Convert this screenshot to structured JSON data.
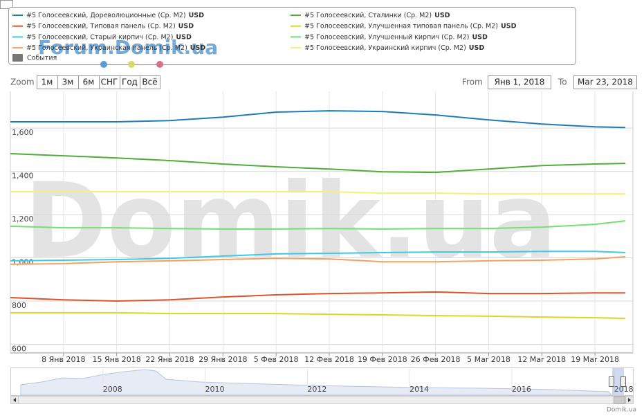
{
  "chart_data": {
    "type": "line",
    "currency": "USD",
    "events_label": "События",
    "x": [
      "2018-01-01",
      "2018-01-08",
      "2018-01-15",
      "2018-01-22",
      "2018-01-29",
      "2018-02-05",
      "2018-02-12",
      "2018-02-19",
      "2018-02-26",
      "2018-03-05",
      "2018-03-12",
      "2018-03-19",
      "2018-03-23"
    ],
    "series": [
      {
        "name": "#5 Голосеевский, Дореволюционные (Ср. M2)",
        "color": "#1f7ab8",
        "values": [
          1629,
          1629,
          1629,
          1635,
          1651,
          1674,
          1680,
          1677,
          1661,
          1638,
          1619,
          1606,
          1603
        ]
      },
      {
        "name": "#5 Голосеевский, Типовая панель (Ср. M2)",
        "color": "#e0522b",
        "values": [
          816,
          806,
          800,
          806,
          819,
          829,
          835,
          838,
          842,
          835,
          835,
          838,
          838
        ]
      },
      {
        "name": "#5 Голосеевский, Старый кирпич (Ср. M2)",
        "color": "#3ec8e8",
        "values": [
          986,
          989,
          992,
          998,
          1008,
          1018,
          1021,
          1024,
          1027,
          1027,
          1030,
          1030,
          1024
        ]
      },
      {
        "name": "#5 Голосеевский, Украинская панель (Ср. M2)",
        "color": "#f5a063",
        "values": [
          970,
          973,
          982,
          986,
          992,
          998,
          995,
          982,
          982,
          986,
          989,
          995,
          1005
        ]
      },
      {
        "name": "#5 Голосеевский, Сталинки (Ср. M2)",
        "color": "#4caf3a",
        "values": [
          1482,
          1472,
          1462,
          1450,
          1434,
          1421,
          1411,
          1398,
          1395,
          1411,
          1427,
          1434,
          1437
        ]
      },
      {
        "name": "#5 Голосеевский, Улучшенная типовая панель (Ср. M2)",
        "color": "#d8d82a",
        "values": [
          746,
          746,
          746,
          742,
          742,
          742,
          739,
          736,
          733,
          730,
          726,
          723,
          720
        ]
      },
      {
        "name": "#5 Голосеевский, Улучшенный кирпич (Ср. M2)",
        "color": "#74e070",
        "values": [
          1146,
          1139,
          1139,
          1136,
          1133,
          1133,
          1136,
          1133,
          1136,
          1136,
          1142,
          1155,
          1171
        ]
      },
      {
        "name": "#5 Голосеевский, Украинский кирпич (Ср. M2)",
        "color": "#f2f27a",
        "values": [
          1306,
          1306,
          1306,
          1306,
          1306,
          1306,
          1306,
          1299,
          1299,
          1296,
          1296,
          1296,
          1296
        ]
      }
    ],
    "xlim": [
      "2018-01-01",
      "2018-03-24"
    ],
    "xticks": [
      {
        "value": "2018-01-08",
        "label": "8 Янв 2018"
      },
      {
        "value": "2018-01-15",
        "label": "15 Янв 2018"
      },
      {
        "value": "2018-01-22",
        "label": "22 Янв 2018"
      },
      {
        "value": "2018-01-29",
        "label": "29 Янв 2018"
      },
      {
        "value": "2018-02-05",
        "label": "5 Фев 2018"
      },
      {
        "value": "2018-02-12",
        "label": "12 Фев 2018"
      },
      {
        "value": "2018-02-19",
        "label": "19 Фев 2018"
      },
      {
        "value": "2018-02-26",
        "label": "26 Фев 2018"
      },
      {
        "value": "2018-03-05",
        "label": "5 Mar 2018"
      },
      {
        "value": "2018-03-12",
        "label": "12 Mar 2018"
      },
      {
        "value": "2018-03-19",
        "label": "19 Mar 2018"
      }
    ],
    "ylim": [
      560,
      1770
    ],
    "yticks": [
      600,
      800,
      {
        "value": 1000,
        "label": "1,000"
      },
      {
        "value": 1200,
        "label": "1,200"
      },
      {
        "value": 1400,
        "label": "1,400"
      },
      {
        "value": 1600,
        "label": "1,600"
      }
    ],
    "grid": true
  },
  "navigator": {
    "xlim": [
      2006,
      2018.18
    ],
    "xticks": [
      2008,
      2010,
      2012,
      2014,
      2016,
      2018
    ]
  },
  "ui": {
    "zoom_label": "Zoom",
    "zoom_buttons": [
      "1м",
      "3м",
      "6м",
      "СНГ",
      "Год",
      "Всё"
    ],
    "from_label": "From",
    "from_value": "Янв 1, 2018",
    "to_label": "To",
    "to_value": "Mar 23, 2018",
    "watermark": "Domik.ua",
    "forum_watermark": "Forum.Domik.ua",
    "credit": "Domik.ua"
  }
}
